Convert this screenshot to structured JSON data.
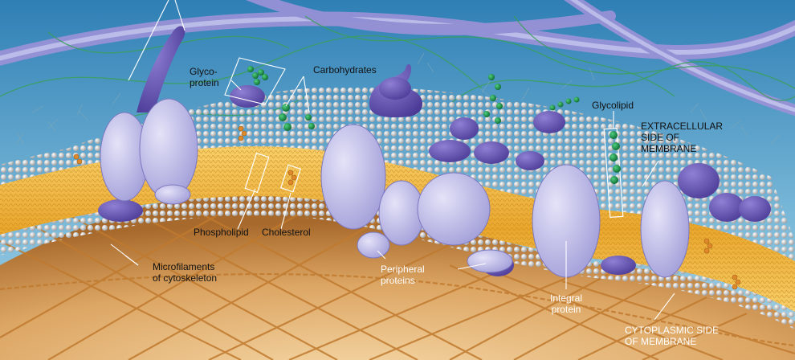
{
  "labels": {
    "glycoprotein": "Glyco-\nprotein",
    "carbohydrates": "Carbohydrates",
    "glycolipid": "Glycolipid",
    "extracellular": "EXTRACELLULAR\nSIDE OF\nMEMBRANE",
    "phospholipid": "Phospholipid",
    "cholesterol": "Cholesterol",
    "microfilaments": "Microfilaments\nof cytoskeleton",
    "peripheral": "Peripheral\nproteins",
    "integral": "Integral\nprotein",
    "cytoplasmic": "CYTOPLASMIC SIDE\nOF MEMBRANE"
  },
  "colors": {
    "extracellular_fluid": "#5fa3c8",
    "cytoplasm": "#d9a460",
    "protein": "#b9b7e6",
    "protein_dark": "#5b4aa6",
    "lipid_tails": "#f0b53a",
    "phosphate_heads": "#d8d8d8",
    "carbohydrate": "#1f9a4a",
    "cytoskeleton": "#c9853a",
    "matrix_fiber": "#9a93d4"
  }
}
